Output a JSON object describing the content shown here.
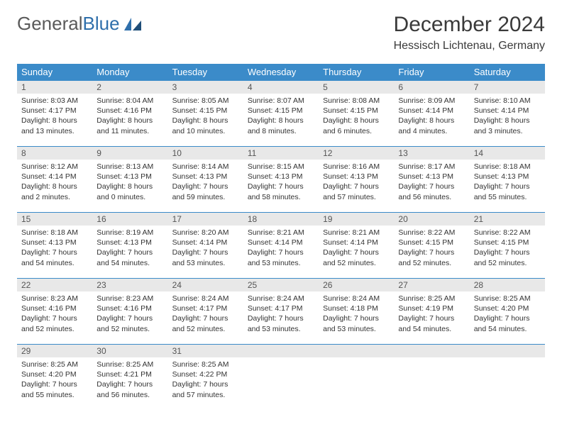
{
  "logo": {
    "text_gray": "General",
    "text_blue": "Blue"
  },
  "title": {
    "month": "December 2024",
    "location": "Hessisch Lichtenau, Germany"
  },
  "colors": {
    "header_bg": "#3b8bc9",
    "header_text": "#ffffff",
    "daynum_bg": "#e8e8e8",
    "cell_border": "#3b8bc9",
    "body_text": "#333333",
    "logo_gray": "#5a5a5a",
    "logo_blue": "#2f6fab"
  },
  "weekdays": [
    "Sunday",
    "Monday",
    "Tuesday",
    "Wednesday",
    "Thursday",
    "Friday",
    "Saturday"
  ],
  "weeks": [
    [
      {
        "n": "1",
        "sr": "Sunrise: 8:03 AM",
        "ss": "Sunset: 4:17 PM",
        "d1": "Daylight: 8 hours",
        "d2": "and 13 minutes."
      },
      {
        "n": "2",
        "sr": "Sunrise: 8:04 AM",
        "ss": "Sunset: 4:16 PM",
        "d1": "Daylight: 8 hours",
        "d2": "and 11 minutes."
      },
      {
        "n": "3",
        "sr": "Sunrise: 8:05 AM",
        "ss": "Sunset: 4:15 PM",
        "d1": "Daylight: 8 hours",
        "d2": "and 10 minutes."
      },
      {
        "n": "4",
        "sr": "Sunrise: 8:07 AM",
        "ss": "Sunset: 4:15 PM",
        "d1": "Daylight: 8 hours",
        "d2": "and 8 minutes."
      },
      {
        "n": "5",
        "sr": "Sunrise: 8:08 AM",
        "ss": "Sunset: 4:15 PM",
        "d1": "Daylight: 8 hours",
        "d2": "and 6 minutes."
      },
      {
        "n": "6",
        "sr": "Sunrise: 8:09 AM",
        "ss": "Sunset: 4:14 PM",
        "d1": "Daylight: 8 hours",
        "d2": "and 4 minutes."
      },
      {
        "n": "7",
        "sr": "Sunrise: 8:10 AM",
        "ss": "Sunset: 4:14 PM",
        "d1": "Daylight: 8 hours",
        "d2": "and 3 minutes."
      }
    ],
    [
      {
        "n": "8",
        "sr": "Sunrise: 8:12 AM",
        "ss": "Sunset: 4:14 PM",
        "d1": "Daylight: 8 hours",
        "d2": "and 2 minutes."
      },
      {
        "n": "9",
        "sr": "Sunrise: 8:13 AM",
        "ss": "Sunset: 4:13 PM",
        "d1": "Daylight: 8 hours",
        "d2": "and 0 minutes."
      },
      {
        "n": "10",
        "sr": "Sunrise: 8:14 AM",
        "ss": "Sunset: 4:13 PM",
        "d1": "Daylight: 7 hours",
        "d2": "and 59 minutes."
      },
      {
        "n": "11",
        "sr": "Sunrise: 8:15 AM",
        "ss": "Sunset: 4:13 PM",
        "d1": "Daylight: 7 hours",
        "d2": "and 58 minutes."
      },
      {
        "n": "12",
        "sr": "Sunrise: 8:16 AM",
        "ss": "Sunset: 4:13 PM",
        "d1": "Daylight: 7 hours",
        "d2": "and 57 minutes."
      },
      {
        "n": "13",
        "sr": "Sunrise: 8:17 AM",
        "ss": "Sunset: 4:13 PM",
        "d1": "Daylight: 7 hours",
        "d2": "and 56 minutes."
      },
      {
        "n": "14",
        "sr": "Sunrise: 8:18 AM",
        "ss": "Sunset: 4:13 PM",
        "d1": "Daylight: 7 hours",
        "d2": "and 55 minutes."
      }
    ],
    [
      {
        "n": "15",
        "sr": "Sunrise: 8:18 AM",
        "ss": "Sunset: 4:13 PM",
        "d1": "Daylight: 7 hours",
        "d2": "and 54 minutes."
      },
      {
        "n": "16",
        "sr": "Sunrise: 8:19 AM",
        "ss": "Sunset: 4:13 PM",
        "d1": "Daylight: 7 hours",
        "d2": "and 54 minutes."
      },
      {
        "n": "17",
        "sr": "Sunrise: 8:20 AM",
        "ss": "Sunset: 4:14 PM",
        "d1": "Daylight: 7 hours",
        "d2": "and 53 minutes."
      },
      {
        "n": "18",
        "sr": "Sunrise: 8:21 AM",
        "ss": "Sunset: 4:14 PM",
        "d1": "Daylight: 7 hours",
        "d2": "and 53 minutes."
      },
      {
        "n": "19",
        "sr": "Sunrise: 8:21 AM",
        "ss": "Sunset: 4:14 PM",
        "d1": "Daylight: 7 hours",
        "d2": "and 52 minutes."
      },
      {
        "n": "20",
        "sr": "Sunrise: 8:22 AM",
        "ss": "Sunset: 4:15 PM",
        "d1": "Daylight: 7 hours",
        "d2": "and 52 minutes."
      },
      {
        "n": "21",
        "sr": "Sunrise: 8:22 AM",
        "ss": "Sunset: 4:15 PM",
        "d1": "Daylight: 7 hours",
        "d2": "and 52 minutes."
      }
    ],
    [
      {
        "n": "22",
        "sr": "Sunrise: 8:23 AM",
        "ss": "Sunset: 4:16 PM",
        "d1": "Daylight: 7 hours",
        "d2": "and 52 minutes."
      },
      {
        "n": "23",
        "sr": "Sunrise: 8:23 AM",
        "ss": "Sunset: 4:16 PM",
        "d1": "Daylight: 7 hours",
        "d2": "and 52 minutes."
      },
      {
        "n": "24",
        "sr": "Sunrise: 8:24 AM",
        "ss": "Sunset: 4:17 PM",
        "d1": "Daylight: 7 hours",
        "d2": "and 52 minutes."
      },
      {
        "n": "25",
        "sr": "Sunrise: 8:24 AM",
        "ss": "Sunset: 4:17 PM",
        "d1": "Daylight: 7 hours",
        "d2": "and 53 minutes."
      },
      {
        "n": "26",
        "sr": "Sunrise: 8:24 AM",
        "ss": "Sunset: 4:18 PM",
        "d1": "Daylight: 7 hours",
        "d2": "and 53 minutes."
      },
      {
        "n": "27",
        "sr": "Sunrise: 8:25 AM",
        "ss": "Sunset: 4:19 PM",
        "d1": "Daylight: 7 hours",
        "d2": "and 54 minutes."
      },
      {
        "n": "28",
        "sr": "Sunrise: 8:25 AM",
        "ss": "Sunset: 4:20 PM",
        "d1": "Daylight: 7 hours",
        "d2": "and 54 minutes."
      }
    ],
    [
      {
        "n": "29",
        "sr": "Sunrise: 8:25 AM",
        "ss": "Sunset: 4:20 PM",
        "d1": "Daylight: 7 hours",
        "d2": "and 55 minutes."
      },
      {
        "n": "30",
        "sr": "Sunrise: 8:25 AM",
        "ss": "Sunset: 4:21 PM",
        "d1": "Daylight: 7 hours",
        "d2": "and 56 minutes."
      },
      {
        "n": "31",
        "sr": "Sunrise: 8:25 AM",
        "ss": "Sunset: 4:22 PM",
        "d1": "Daylight: 7 hours",
        "d2": "and 57 minutes."
      },
      {
        "n": "",
        "sr": "",
        "ss": "",
        "d1": "",
        "d2": ""
      },
      {
        "n": "",
        "sr": "",
        "ss": "",
        "d1": "",
        "d2": ""
      },
      {
        "n": "",
        "sr": "",
        "ss": "",
        "d1": "",
        "d2": ""
      },
      {
        "n": "",
        "sr": "",
        "ss": "",
        "d1": "",
        "d2": ""
      }
    ]
  ]
}
